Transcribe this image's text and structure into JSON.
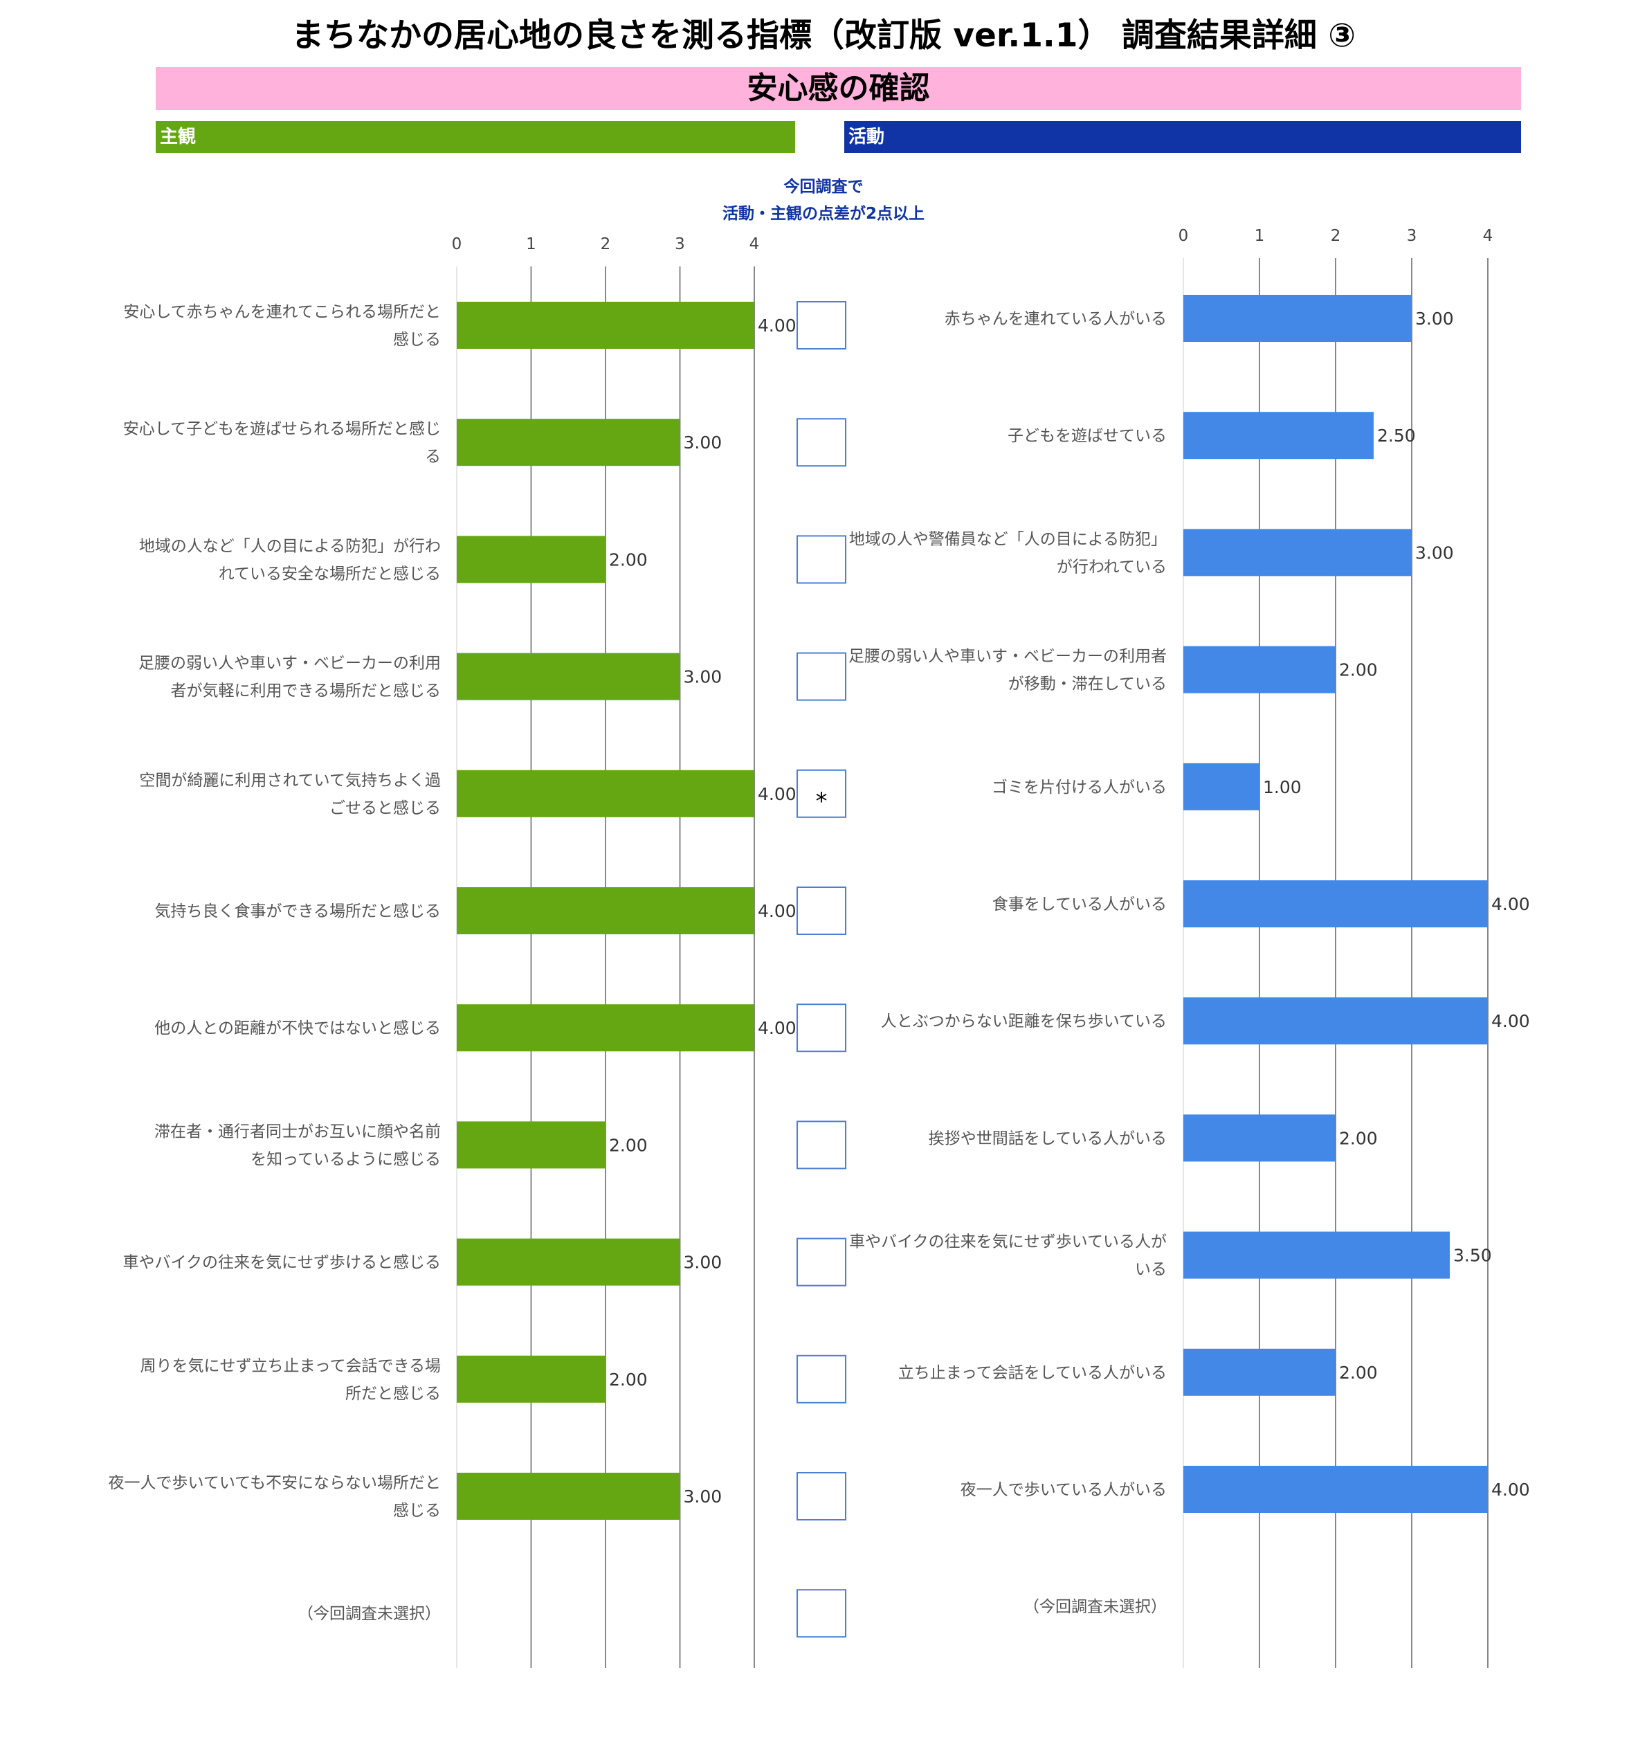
{
  "header": {
    "title": "まちなかの居心地の良さを測る指標（改訂版 ver.1.1） 調査結果詳細 ③",
    "section": "安心感の確認",
    "subjective_label": "主観",
    "activity_label": "活動",
    "note_line1": "今回調査で",
    "note_line2": "活動・主観の点差が2点以上"
  },
  "colors": {
    "subjective_bar": "#64a713",
    "activity_bar": "#4388e6",
    "activity_band": "#1033a6",
    "section_band": "#ffb3dc",
    "box_border": "#4a7fd4"
  },
  "chart_data": [
    {
      "type": "bar",
      "orientation": "horizontal",
      "xlim": [
        0,
        4
      ],
      "ticks": [
        "0",
        "1",
        "2",
        "3",
        "4"
      ],
      "grid": true,
      "categories": [
        [
          "安心して赤ちゃんを連れてこられる場所だと",
          "感じる"
        ],
        [
          "安心して子どもを遊ばせられる場所だと感じ",
          "る"
        ],
        [
          "地域の人など「人の目による防犯」が行わ",
          "れている安全な場所だと感じる"
        ],
        [
          "足腰の弱い人や車いす・ベビーカーの利用",
          "者が気軽に利用できる場所だと感じる"
        ],
        [
          "空間が綺麗に利用されていて気持ちよく過",
          "ごせると感じる"
        ],
        [
          "気持ち良く食事ができる場所だと感じる"
        ],
        [
          "他の人との距離が不快ではないと感じる"
        ],
        [
          "滞在者・通行者同士がお互いに顔や名前",
          "を知っているように感じる"
        ],
        [
          "車やバイクの往来を気にせず歩けると感じる"
        ],
        [
          "周りを気にせず立ち止まって会話できる場",
          "所だと感じる"
        ],
        [
          "夜一人で歩いていても不安にならない場所だと",
          "感じる"
        ],
        [
          "（今回調査未選択）"
        ]
      ],
      "values": [
        4,
        3,
        2,
        3,
        4,
        4,
        4,
        2,
        3,
        2,
        3,
        null
      ],
      "value_labels": [
        "4.00",
        "3.00",
        "2.00",
        "3.00",
        "4.00",
        "4.00",
        "4.00",
        "2.00",
        "3.00",
        "2.00",
        "3.00",
        ""
      ]
    },
    {
      "type": "bar",
      "orientation": "horizontal",
      "xlim": [
        0,
        4
      ],
      "ticks": [
        "0",
        "1",
        "2",
        "3",
        "4"
      ],
      "grid": true,
      "categories": [
        [
          "赤ちゃんを連れている人がいる"
        ],
        [
          "子どもを遊ばせている"
        ],
        [
          "地域の人や警備員など「人の目による防犯」",
          "が行われている"
        ],
        [
          "足腰の弱い人や車いす・ベビーカーの利用者",
          "が移動・滞在している"
        ],
        [
          "ゴミを片付ける人がいる"
        ],
        [
          "食事をしている人がいる"
        ],
        [
          "人とぶつからない距離を保ち歩いている"
        ],
        [
          "挨拶や世間話をしている人がいる"
        ],
        [
          "車やバイクの往来を気にせず歩いている人が",
          "いる"
        ],
        [
          "立ち止まって会話をしている人がいる"
        ],
        [
          "夜一人で歩いている人がいる"
        ],
        [
          "（今回調査未選択）"
        ]
      ],
      "values": [
        3,
        2.5,
        3,
        2,
        1,
        4,
        4,
        2,
        3.5,
        2,
        4,
        null
      ],
      "value_labels": [
        "3.00",
        "2.50",
        "3.00",
        "2.00",
        "1.00",
        "4.00",
        "4.00",
        "2.00",
        "3.50",
        "2.00",
        "4.00",
        ""
      ]
    }
  ],
  "gap_marks": [
    "",
    "",
    "",
    "",
    "*",
    "",
    "",
    "",
    "",
    "",
    "",
    ""
  ]
}
